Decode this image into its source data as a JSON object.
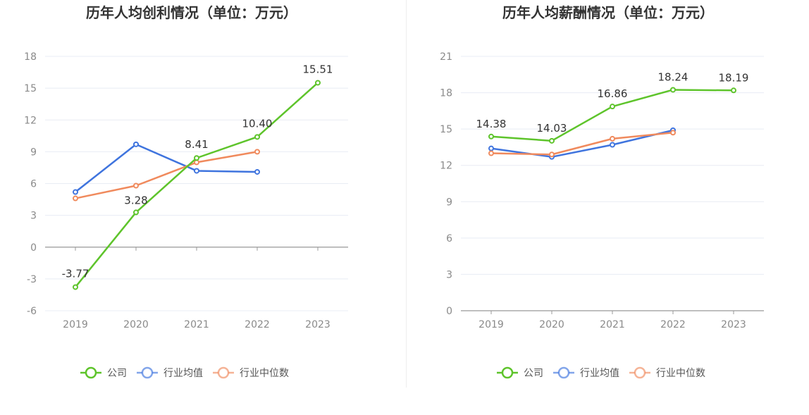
{
  "charts": {
    "left": {
      "title": "历年人均创利情况（单位：万元）",
      "categories": [
        "2019",
        "2020",
        "2021",
        "2022",
        "2023"
      ],
      "yticks": [
        "18",
        "15",
        "12",
        "9",
        "6",
        "3",
        "0",
        "-3",
        "-6"
      ],
      "labels": [
        "-3.77",
        "3.28",
        "8.41",
        "10.40",
        "15.51"
      ]
    },
    "right": {
      "title": "历年人均薪酬情况（单位：万元）",
      "categories": [
        "2019",
        "2020",
        "2021",
        "2022",
        "2023"
      ],
      "yticks": [
        "21",
        "18",
        "15",
        "12",
        "9",
        "6",
        "3",
        "0"
      ],
      "labels": [
        "14.38",
        "14.03",
        "16.86",
        "18.24",
        "18.19"
      ]
    }
  },
  "legend": {
    "company": "公司",
    "avg": "行业均值",
    "median": "行业中位数"
  },
  "colors": {
    "company": "#5ec42b",
    "avg": "#3f74de",
    "median": "#f08a5d",
    "grid": "#e8ecf4",
    "axis": "#999999"
  },
  "chart_data": [
    {
      "type": "line",
      "title": "历年人均创利情况（单位：万元）",
      "categories": [
        "2019",
        "2020",
        "2021",
        "2022",
        "2023"
      ],
      "ylim": [
        -6,
        18
      ],
      "grid": true,
      "legend": "bottom-center",
      "series": [
        {
          "name": "公司",
          "values": [
            -3.77,
            3.28,
            8.41,
            10.4,
            15.51
          ]
        },
        {
          "name": "行业均值",
          "values": [
            5.2,
            9.7,
            7.2,
            7.1,
            null
          ]
        },
        {
          "name": "行业中位数",
          "values": [
            4.6,
            5.8,
            8.0,
            9.0,
            null
          ]
        }
      ]
    },
    {
      "type": "line",
      "title": "历年人均薪酬情况（单位：万元）",
      "categories": [
        "2019",
        "2020",
        "2021",
        "2022",
        "2023"
      ],
      "ylim": [
        0,
        21
      ],
      "grid": true,
      "legend": "bottom-center",
      "series": [
        {
          "name": "公司",
          "values": [
            14.38,
            14.03,
            16.86,
            18.24,
            18.19
          ]
        },
        {
          "name": "行业均值",
          "values": [
            13.4,
            12.7,
            13.7,
            14.9,
            null
          ]
        },
        {
          "name": "行业中位数",
          "values": [
            13.0,
            12.9,
            14.2,
            14.7,
            null
          ]
        }
      ]
    }
  ]
}
